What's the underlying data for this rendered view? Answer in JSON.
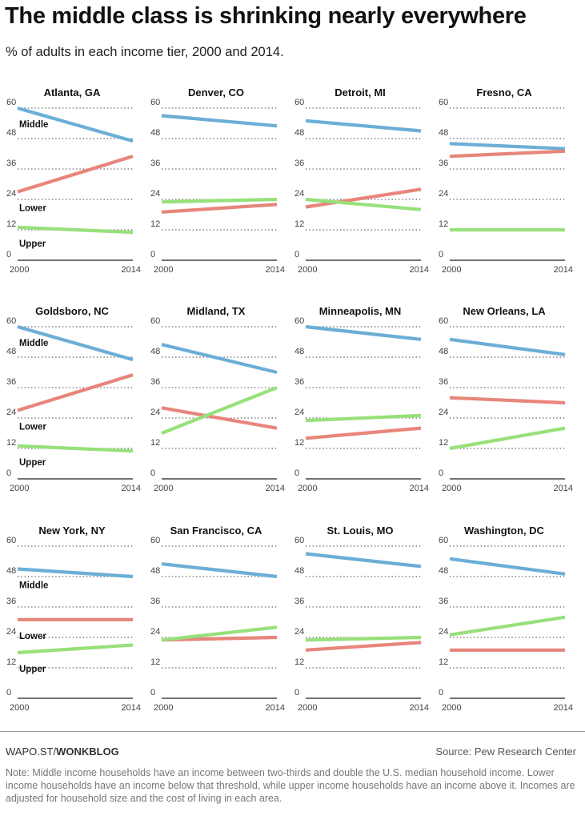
{
  "title": "The middle class is shrinking nearly everywhere",
  "subtitle": "% of adults in each income tier, 2000 and 2014.",
  "footer": {
    "brand_prefix": "WAPO.ST/",
    "brand_bold": "WONKBLOG",
    "source": "Source: Pew Research Center",
    "note": "Note: Middle income households have an income between two-thirds and double the U.S. median household income. Lower income households have an income below that threshold, while upper income households have an income above it. Incomes are adjusted for household size and the cost of living in each area."
  },
  "colors": {
    "Middle": "#6baed6",
    "Lower": "#e8857a",
    "Upper": "#98e07a"
  },
  "chart_data": [
    {
      "type": "line",
      "title": "Atlanta, GA",
      "x": [
        "2000",
        "2014"
      ],
      "yticks": [
        0,
        12,
        24,
        36,
        48,
        60
      ],
      "ylim": [
        0,
        60
      ],
      "series_labels": true,
      "series": [
        {
          "name": "Middle",
          "values": [
            60,
            47
          ]
        },
        {
          "name": "Lower",
          "values": [
            27,
            41
          ]
        },
        {
          "name": "Upper",
          "values": [
            13,
            11
          ]
        }
      ]
    },
    {
      "type": "line",
      "title": "Denver, CO",
      "x": [
        "2000",
        "2014"
      ],
      "yticks": [
        0,
        12,
        24,
        36,
        48,
        60
      ],
      "ylim": [
        0,
        60
      ],
      "series": [
        {
          "name": "Middle",
          "values": [
            57,
            53
          ]
        },
        {
          "name": "Lower",
          "values": [
            19,
            22
          ]
        },
        {
          "name": "Upper",
          "values": [
            23,
            24
          ]
        }
      ]
    },
    {
      "type": "line",
      "title": "Detroit, MI",
      "x": [
        "2000",
        "2014"
      ],
      "yticks": [
        0,
        12,
        24,
        36,
        48,
        60
      ],
      "ylim": [
        0,
        60
      ],
      "series": [
        {
          "name": "Middle",
          "values": [
            55,
            51
          ]
        },
        {
          "name": "Lower",
          "values": [
            21,
            28
          ]
        },
        {
          "name": "Upper",
          "values": [
            24,
            20
          ]
        }
      ]
    },
    {
      "type": "line",
      "title": "Fresno, CA",
      "x": [
        "2000",
        "2014"
      ],
      "yticks": [
        0,
        12,
        24,
        36,
        48,
        60
      ],
      "ylim": [
        0,
        60
      ],
      "series": [
        {
          "name": "Middle",
          "values": [
            46,
            44
          ]
        },
        {
          "name": "Lower",
          "values": [
            41,
            43
          ]
        },
        {
          "name": "Upper",
          "values": [
            12,
            12
          ]
        }
      ]
    },
    {
      "type": "line",
      "title": "Goldsboro, NC",
      "x": [
        "2000",
        "2014"
      ],
      "yticks": [
        0,
        12,
        24,
        36,
        48,
        60
      ],
      "ylim": [
        0,
        60
      ],
      "series_labels": true,
      "series": [
        {
          "name": "Middle",
          "values": [
            60,
            47
          ]
        },
        {
          "name": "Lower",
          "values": [
            27,
            41
          ]
        },
        {
          "name": "Upper",
          "values": [
            13,
            11
          ]
        }
      ]
    },
    {
      "type": "line",
      "title": "Midland, TX",
      "x": [
        "2000",
        "2014"
      ],
      "yticks": [
        0,
        12,
        24,
        36,
        48,
        60
      ],
      "ylim": [
        0,
        60
      ],
      "series": [
        {
          "name": "Middle",
          "values": [
            53,
            42
          ]
        },
        {
          "name": "Lower",
          "values": [
            28,
            20
          ]
        },
        {
          "name": "Upper",
          "values": [
            18,
            36
          ]
        }
      ]
    },
    {
      "type": "line",
      "title": "Minneapolis, MN",
      "x": [
        "2000",
        "2014"
      ],
      "yticks": [
        0,
        12,
        24,
        36,
        48,
        60
      ],
      "ylim": [
        0,
        60
      ],
      "series": [
        {
          "name": "Middle",
          "values": [
            60,
            55
          ]
        },
        {
          "name": "Lower",
          "values": [
            16,
            20
          ]
        },
        {
          "name": "Upper",
          "values": [
            23,
            25
          ]
        }
      ]
    },
    {
      "type": "line",
      "title": "New Orleans, LA",
      "x": [
        "2000",
        "2014"
      ],
      "yticks": [
        0,
        12,
        24,
        36,
        48,
        60
      ],
      "ylim": [
        0,
        60
      ],
      "series": [
        {
          "name": "Middle",
          "values": [
            55,
            49
          ]
        },
        {
          "name": "Lower",
          "values": [
            32,
            30
          ]
        },
        {
          "name": "Upper",
          "values": [
            12,
            20
          ]
        }
      ]
    },
    {
      "type": "line",
      "title": "New York, NY",
      "x": [
        "2000",
        "2014"
      ],
      "yticks": [
        0,
        12,
        24,
        36,
        48,
        60
      ],
      "ylim": [
        0,
        60
      ],
      "series_labels": true,
      "series": [
        {
          "name": "Middle",
          "values": [
            51,
            48
          ]
        },
        {
          "name": "Lower",
          "values": [
            31,
            31
          ]
        },
        {
          "name": "Upper",
          "values": [
            18,
            21
          ]
        }
      ]
    },
    {
      "type": "line",
      "title": "San Francisco, CA",
      "x": [
        "2000",
        "2014"
      ],
      "yticks": [
        0,
        12,
        24,
        36,
        48,
        60
      ],
      "ylim": [
        0,
        60
      ],
      "series": [
        {
          "name": "Middle",
          "values": [
            53,
            48
          ]
        },
        {
          "name": "Lower",
          "values": [
            23,
            24
          ]
        },
        {
          "name": "Upper",
          "values": [
            23,
            28
          ]
        }
      ]
    },
    {
      "type": "line",
      "title": "St. Louis, MO",
      "x": [
        "2000",
        "2014"
      ],
      "yticks": [
        0,
        12,
        24,
        36,
        48,
        60
      ],
      "ylim": [
        0,
        60
      ],
      "series": [
        {
          "name": "Middle",
          "values": [
            57,
            52
          ]
        },
        {
          "name": "Lower",
          "values": [
            19,
            22
          ]
        },
        {
          "name": "Upper",
          "values": [
            23,
            24
          ]
        }
      ]
    },
    {
      "type": "line",
      "title": "Washington, DC",
      "x": [
        "2000",
        "2014"
      ],
      "yticks": [
        0,
        12,
        24,
        36,
        48,
        60
      ],
      "ylim": [
        0,
        60
      ],
      "series": [
        {
          "name": "Middle",
          "values": [
            55,
            49
          ]
        },
        {
          "name": "Lower",
          "values": [
            19,
            19
          ]
        },
        {
          "name": "Upper",
          "values": [
            25,
            32
          ]
        }
      ]
    }
  ]
}
